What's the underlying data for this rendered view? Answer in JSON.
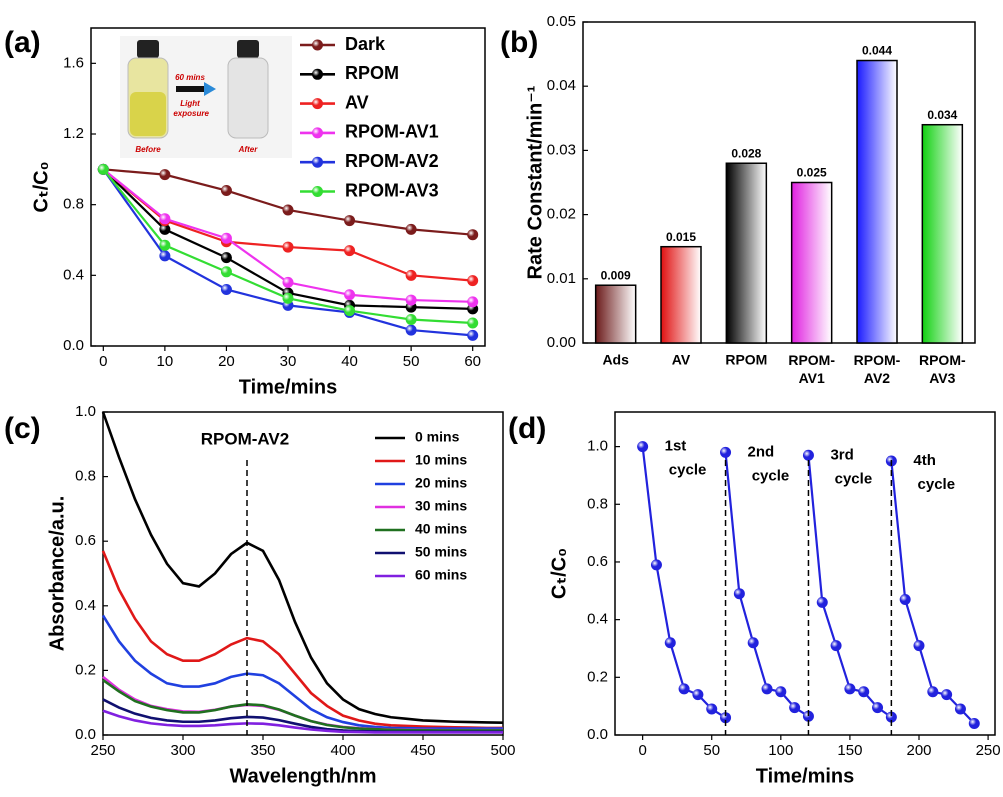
{
  "chart_data": [
    {
      "type": "line",
      "panel_label": "(a)",
      "xlabel": "Time/mins",
      "ylabel": "Cₜ/C₀",
      "legend": "upper right",
      "markers": true,
      "xlim": [
        -2,
        62
      ],
      "xticks": [
        0,
        10,
        20,
        30,
        40,
        50,
        60
      ],
      "ylim": [
        0,
        1.8
      ],
      "yticks": [
        {
          "value": 0,
          "label": "0.0"
        },
        0.4,
        0.8,
        1.2,
        1.6
      ],
      "x": [
        0,
        10,
        20,
        30,
        40,
        50,
        60
      ],
      "series": [
        {
          "name": "Dark",
          "color": "#7b1c1c",
          "values": [
            1.0,
            0.97,
            0.88,
            0.77,
            0.71,
            0.66,
            0.63
          ]
        },
        {
          "name": "RPOM",
          "color": "#000000",
          "values": [
            1.0,
            0.66,
            0.5,
            0.3,
            0.23,
            0.22,
            0.21
          ]
        },
        {
          "name": "AV",
          "color": "#ee2222",
          "values": [
            1.0,
            0.71,
            0.59,
            0.56,
            0.54,
            0.4,
            0.37
          ]
        },
        {
          "name": "RPOM-AV1",
          "color": "#ee33ee",
          "values": [
            1.0,
            0.72,
            0.61,
            0.36,
            0.29,
            0.26,
            0.25
          ]
        },
        {
          "name": "RPOM-AV2",
          "color": "#2233dd",
          "values": [
            1.0,
            0.51,
            0.32,
            0.23,
            0.19,
            0.09,
            0.06
          ]
        },
        {
          "name": "RPOM-AV3",
          "color": "#33dd33",
          "values": [
            1.0,
            0.57,
            0.42,
            0.27,
            0.2,
            0.15,
            0.13
          ]
        }
      ],
      "inset_labels": [
        "60 mins",
        "Light exposure",
        "Before",
        "After"
      ]
    },
    {
      "type": "bar",
      "panel_label": "(b)",
      "ylabel": "Rate Constant/min⁻¹",
      "categories": [
        "Ads",
        "AV",
        "RPOM",
        "RPOM-AV1",
        "RPOM-AV2",
        "RPOM-AV3"
      ],
      "values": [
        0.009,
        0.015,
        0.028,
        0.025,
        0.044,
        0.034
      ],
      "colors": [
        "#6b1a1a",
        "#e01010",
        "#000000",
        "#e020e0",
        "#1a1aff",
        "#10d010"
      ],
      "ylim": [
        0,
        0.05
      ],
      "yticks": [
        {
          "value": 0,
          "label": "0.00"
        },
        0.01,
        0.02,
        0.03,
        0.04,
        0.05
      ]
    },
    {
      "type": "line",
      "panel_label": "(c)",
      "xlabel": "Wavelength/nm",
      "ylabel": "Absorbance/a.u.",
      "legend": "upper right",
      "markers": false,
      "annotation": "RPOM-AV2",
      "reference_x": 340,
      "xlim": [
        250,
        500
      ],
      "xticks": [
        250,
        300,
        350,
        400,
        450,
        500
      ],
      "ylim": [
        0,
        1.0
      ],
      "yticks": [
        {
          "value": 0,
          "label": "0.0"
        },
        0.2,
        0.4,
        0.6,
        0.8,
        {
          "value": 1.0,
          "label": "1.0"
        }
      ],
      "x": [
        250,
        260,
        270,
        280,
        290,
        300,
        310,
        320,
        330,
        340,
        350,
        360,
        370,
        380,
        390,
        400,
        410,
        420,
        430,
        440,
        450,
        460,
        470,
        480,
        490,
        500
      ],
      "series": [
        {
          "name": "0 mins",
          "color": "#000000",
          "values": [
            1.0,
            0.86,
            0.73,
            0.62,
            0.53,
            0.47,
            0.46,
            0.5,
            0.56,
            0.595,
            0.57,
            0.48,
            0.35,
            0.24,
            0.16,
            0.11,
            0.08,
            0.065,
            0.055,
            0.05,
            0.045,
            0.043,
            0.041,
            0.04,
            0.039,
            0.038
          ]
        },
        {
          "name": "10 mins",
          "color": "#e01818",
          "values": [
            0.57,
            0.45,
            0.36,
            0.29,
            0.25,
            0.23,
            0.23,
            0.25,
            0.28,
            0.3,
            0.29,
            0.25,
            0.19,
            0.13,
            0.09,
            0.06,
            0.045,
            0.035,
            0.03,
            0.028,
            0.026,
            0.025,
            0.024,
            0.023,
            0.022,
            0.022
          ]
        },
        {
          "name": "20 mins",
          "color": "#2040e0",
          "values": [
            0.37,
            0.29,
            0.23,
            0.19,
            0.16,
            0.15,
            0.15,
            0.16,
            0.18,
            0.19,
            0.185,
            0.16,
            0.12,
            0.08,
            0.055,
            0.04,
            0.03,
            0.025,
            0.022,
            0.021,
            0.02,
            0.02,
            0.02,
            0.02,
            0.02,
            0.02
          ]
        },
        {
          "name": "30 mins",
          "color": "#e030e0",
          "values": [
            0.18,
            0.14,
            0.11,
            0.09,
            0.08,
            0.073,
            0.072,
            0.078,
            0.088,
            0.093,
            0.09,
            0.078,
            0.06,
            0.043,
            0.032,
            0.025,
            0.021,
            0.019,
            0.017,
            0.016,
            0.016,
            0.015,
            0.015,
            0.015,
            0.015,
            0.015
          ]
        },
        {
          "name": "40 mins",
          "color": "#207020",
          "values": [
            0.17,
            0.135,
            0.105,
            0.088,
            0.077,
            0.07,
            0.07,
            0.077,
            0.088,
            0.095,
            0.092,
            0.079,
            0.06,
            0.043,
            0.031,
            0.024,
            0.02,
            0.018,
            0.016,
            0.015,
            0.015,
            0.014,
            0.014,
            0.014,
            0.014,
            0.014
          ]
        },
        {
          "name": "50 mins",
          "color": "#101070",
          "values": [
            0.11,
            0.085,
            0.066,
            0.053,
            0.045,
            0.041,
            0.041,
            0.045,
            0.052,
            0.056,
            0.054,
            0.046,
            0.035,
            0.025,
            0.018,
            0.014,
            0.012,
            0.011,
            0.01,
            0.01,
            0.01,
            0.01,
            0.01,
            0.01,
            0.01,
            0.01
          ]
        },
        {
          "name": "60 mins",
          "color": "#8020e0",
          "values": [
            0.075,
            0.058,
            0.045,
            0.036,
            0.031,
            0.028,
            0.028,
            0.03,
            0.034,
            0.036,
            0.035,
            0.03,
            0.023,
            0.017,
            0.013,
            0.01,
            0.009,
            0.008,
            0.008,
            0.008,
            0.008,
            0.008,
            0.008,
            0.008,
            0.008,
            0.008
          ]
        }
      ]
    },
    {
      "type": "line",
      "panel_label": "(d)",
      "xlabel": "Time/mins",
      "ylabel": "Cₜ/C₀",
      "markers": true,
      "cycle_boundaries": [
        60,
        120,
        180
      ],
      "xlim": [
        -20,
        255
      ],
      "xticks": [
        0,
        50,
        100,
        150,
        200,
        250
      ],
      "ylim": [
        0,
        1.12
      ],
      "yticks": [
        {
          "value": 0,
          "label": "0.0"
        },
        0.2,
        0.4,
        0.6,
        0.8,
        {
          "value": 1.0,
          "label": "1.0"
        }
      ],
      "series": [
        {
          "label": "1st cycle",
          "color": "#2222dd",
          "x": [
            0,
            10,
            20,
            30,
            40,
            50,
            60
          ],
          "values": [
            1.0,
            0.59,
            0.32,
            0.16,
            0.14,
            0.09,
            0.06
          ]
        },
        {
          "label": "2nd cycle",
          "color": "#2222dd",
          "x": [
            60,
            70,
            80,
            90,
            100,
            110,
            120
          ],
          "values": [
            0.98,
            0.49,
            0.32,
            0.16,
            0.15,
            0.095,
            0.065
          ]
        },
        {
          "label": "3rd cycle",
          "color": "#2222dd",
          "x": [
            120,
            130,
            140,
            150,
            160,
            170,
            180
          ],
          "values": [
            0.97,
            0.46,
            0.31,
            0.16,
            0.15,
            0.095,
            0.062
          ]
        },
        {
          "label": "4th cycle",
          "color": "#2222dd",
          "x": [
            180,
            190,
            200,
            210,
            220,
            230,
            240
          ],
          "values": [
            0.95,
            0.47,
            0.31,
            0.15,
            0.14,
            0.09,
            0.04
          ]
        }
      ]
    }
  ]
}
